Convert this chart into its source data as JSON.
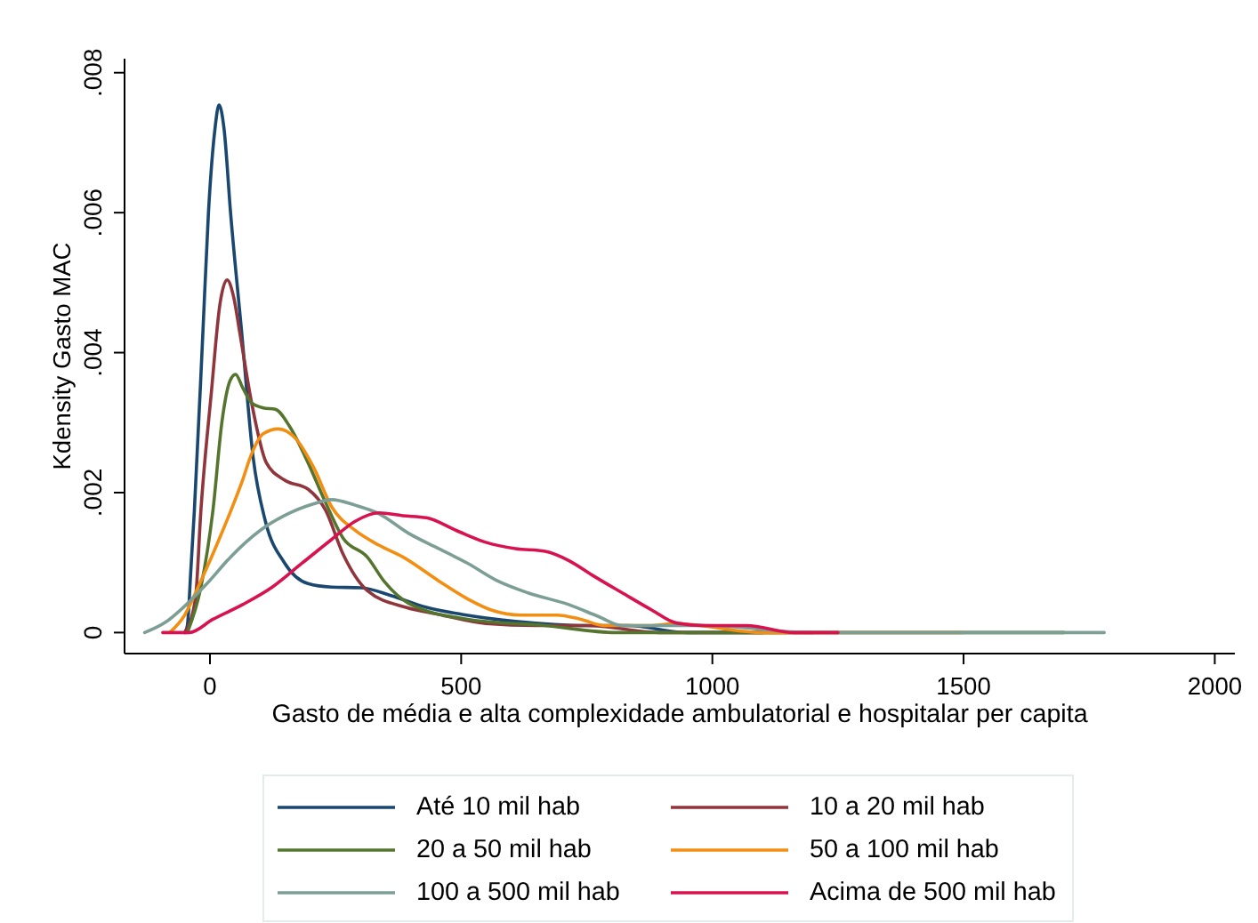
{
  "chart_data": {
    "type": "line",
    "xlabel": "Gasto de média e alta complexidade ambulatorial e hospitalar per capita",
    "ylabel": "Kdensity Gasto MAC",
    "xlim": [
      -170,
      2040
    ],
    "ylim": [
      -0.0003,
      0.0082
    ],
    "xticks": [
      0,
      500,
      1000,
      1500,
      2000
    ],
    "yticks": [
      0,
      {
        "value": 0.002,
        "label": ".002"
      },
      {
        "value": 0.004,
        "label": ".004"
      },
      {
        "value": 0.006,
        "label": ".006"
      },
      {
        "value": 0.008,
        "label": ".008"
      }
    ],
    "legend": "bottom",
    "series": [
      {
        "name": "Até 10 mil hab",
        "color": "#1a476f",
        "x": [
          -50,
          -45,
          -38,
          -31,
          -14,
          -3,
          10,
          18,
          28,
          41,
          63,
          86,
          110,
          148,
          195,
          242,
          301,
          360,
          431,
          502,
          608,
          750,
          832,
          950,
          1100
        ],
        "values": [
          0,
          0.0001,
          0.0009,
          0.00175,
          0.0043,
          0.006,
          0.0072,
          0.00754,
          0.0072,
          0.006,
          0.0043,
          0.0025,
          0.0016,
          0.001,
          0.0007,
          0.00065,
          0.00064,
          0.00053,
          0.00036,
          0.00026,
          0.00016,
          0.0001,
          0.0001,
          0,
          0
        ]
      },
      {
        "name": "10 a 20 mil hab",
        "color": "#90353b",
        "x": [
          -50,
          -29,
          -18,
          3,
          20,
          34,
          47,
          59,
          83,
          112,
          148,
          195,
          230,
          265,
          313,
          390,
          455,
          549,
          650,
          750,
          900,
          1050,
          1200
        ],
        "values": [
          0,
          0.00048,
          0.00175,
          0.00345,
          0.0047,
          0.00504,
          0.0048,
          0.0043,
          0.00328,
          0.00243,
          0.00218,
          0.00205,
          0.00175,
          0.00112,
          0.0006,
          0.00036,
          0.00026,
          0.00013,
          0.0001,
          0.0001,
          0,
          0,
          0
        ]
      },
      {
        "name": "20 a 50 mil hab",
        "color": "#55752f",
        "x": [
          -45,
          -18,
          6,
          24,
          40,
          51,
          65,
          83,
          106,
          130,
          159,
          195,
          230,
          265,
          313,
          348,
          395,
          513,
          667,
          809,
          1000,
          1300,
          1700
        ],
        "values": [
          0,
          0.00065,
          0.00175,
          0.00302,
          0.0036,
          0.00369,
          0.0035,
          0.00328,
          0.00321,
          0.00319,
          0.00294,
          0.00243,
          0.00186,
          0.00135,
          0.00108,
          0.00072,
          0.00042,
          0.00019,
          0.0001,
          0,
          0,
          0,
          0
        ]
      },
      {
        "name": "50 a 100 mil hab",
        "color": "#f28e12",
        "x": [
          -80,
          -52,
          -18,
          18,
          47,
          65,
          80,
          106,
          136,
          171,
          207,
          242,
          289,
          336,
          384,
          455,
          513,
          561,
          620,
          690,
          738,
          785,
          880,
          927,
          974,
          1100,
          1300,
          1500
        ],
        "values": [
          0,
          0.00023,
          0.00074,
          0.00133,
          0.00184,
          0.00218,
          0.0025,
          0.00284,
          0.00291,
          0.00277,
          0.00235,
          0.0018,
          0.00146,
          0.00125,
          0.00108,
          0.00074,
          0.00048,
          0.00032,
          0.00025,
          0.00025,
          0.00019,
          0.0001,
          0.0001,
          0.00013,
          0.0001,
          0,
          0,
          0
        ]
      },
      {
        "name": "100 a 500 mil hab",
        "color": "#7c9e95",
        "x": [
          -130,
          -88,
          -53,
          -6,
          41,
          100,
          148,
          207,
          242,
          289,
          336,
          395,
          455,
          513,
          572,
          632,
          714,
          773,
          820,
          880,
          986,
          1200,
          1500,
          1780
        ],
        "values": [
          0,
          0.00015,
          0.00036,
          0.0007,
          0.00108,
          0.00146,
          0.00167,
          0.00184,
          0.0019,
          0.00182,
          0.0017,
          0.00142,
          0.0012,
          0.00099,
          0.00074,
          0.00057,
          0.0004,
          0.00023,
          0.0001,
          0.0001,
          0.0001,
          0,
          0,
          0
        ]
      },
      {
        "name": "Acima de 500 mil hab",
        "color": "#d8124e",
        "x": [
          -94,
          -41,
          6,
          65,
          124,
          183,
          242,
          289,
          336,
          384,
          431,
          490,
          549,
          608,
          667,
          714,
          761,
          820,
          880,
          927,
          986,
          1068,
          1163,
          1250
        ],
        "values": [
          0,
          0,
          0.00019,
          0.0004,
          0.00065,
          0.00099,
          0.00133,
          0.00159,
          0.00171,
          0.00167,
          0.00164,
          0.00146,
          0.00129,
          0.0012,
          0.00116,
          0.00103,
          0.00082,
          0.00057,
          0.00032,
          0.00014,
          0.0001,
          0.0001,
          0,
          0
        ]
      }
    ]
  }
}
